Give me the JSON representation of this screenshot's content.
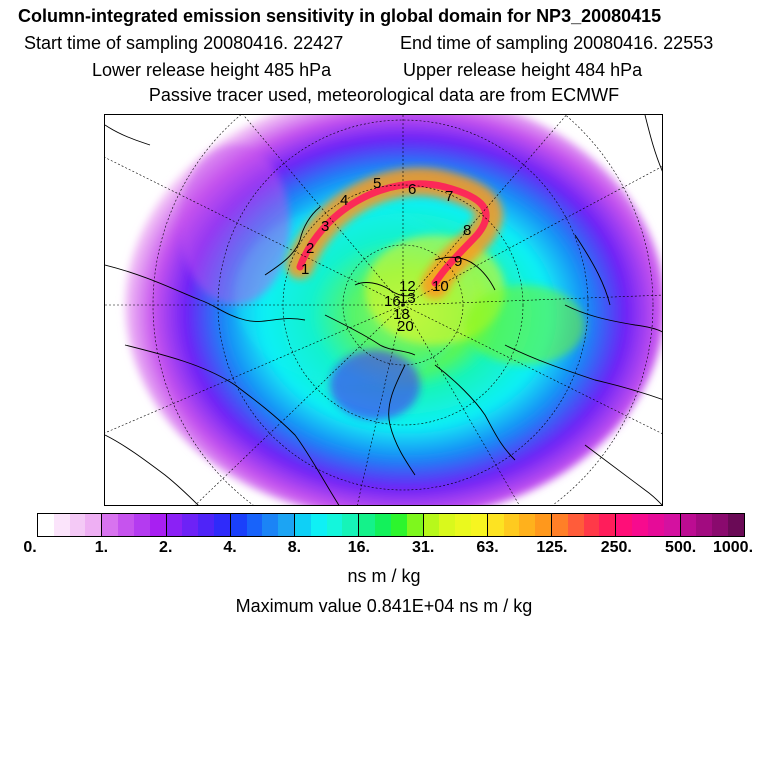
{
  "header": {
    "title": "Column-integrated emission sensitivity in global domain for NP3_20080415",
    "start_time": "Start time of sampling 20080416. 22427",
    "end_time": "End time of sampling 20080416. 22553",
    "lower_release": "Lower release height  485 hPa",
    "upper_release": "Upper release height  484 hPa",
    "tracer_note": "Passive tracer used, meteorological data are from ECMWF"
  },
  "map": {
    "projection": "north-polar-stereographic",
    "track_labels": [
      "1",
      "2",
      "3",
      "4",
      "5",
      "6",
      "7",
      "8",
      "9",
      "10",
      "12",
      "13",
      "16",
      "18",
      "20"
    ],
    "colors": {
      "background": "#ffffff",
      "coast": "#000000",
      "graticule": "#000000"
    }
  },
  "colorbar": {
    "tick_labels": [
      "0.",
      "1.",
      "2.",
      "4.",
      "8.",
      "16.",
      "31.",
      "63.",
      "125.",
      "250.",
      "500.",
      "1000."
    ],
    "colors": [
      "#ffffff",
      "#fbe4fb",
      "#f4c9f6",
      "#eeaff3",
      "#d873ef",
      "#c653ee",
      "#b43bf0",
      "#a81ff2",
      "#8b21f5",
      "#6d22f6",
      "#4f24f8",
      "#2f2bfa",
      "#1a40fb",
      "#1863fa",
      "#1b84f6",
      "#1ca4f3",
      "#0fd0f6",
      "#0ff0f5",
      "#14f6dc",
      "#16f4b8",
      "#14f28a",
      "#13f15b",
      "#2df52d",
      "#7ef71d",
      "#b7f81b",
      "#d9f91c",
      "#eaf91e",
      "#f7f520",
      "#fde322",
      "#feca1f",
      "#ffb11c",
      "#ff981c",
      "#ff7f27",
      "#ff5c3a",
      "#ff3948",
      "#ff1d5b",
      "#ff0e78",
      "#f70b8e",
      "#e60b98",
      "#d411a0",
      "#bc0c92",
      "#a20b80",
      "#8a0a6e",
      "#6a0a56"
    ],
    "unit": "ns m / kg"
  },
  "footer": {
    "max_value": "Maximum value  0.841E+04 ns m / kg"
  }
}
